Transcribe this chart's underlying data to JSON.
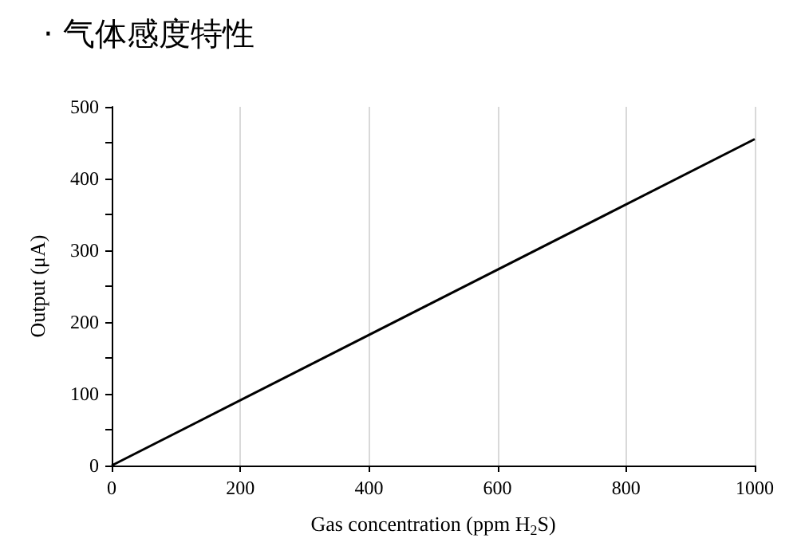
{
  "chart_data": {
    "type": "line",
    "title": "· 气体感度特性",
    "xlabel": "Gas concentration (ppm H$_{2}$S)",
    "ylabel": "Output (μA)",
    "series": [
      {
        "color": "#000000",
        "x": [
          0,
          1000
        ],
        "values": [
          0,
          455
        ]
      }
    ],
    "xlim": [
      0,
      1000
    ],
    "xticks": [
      0,
      200,
      400,
      600,
      800,
      1000
    ],
    "ylim": [
      0,
      500
    ],
    "yticks": [
      0,
      {
        "value": 50,
        "label": null
      },
      100,
      {
        "value": 150,
        "label": null
      },
      200,
      {
        "value": 250,
        "label": null
      },
      300,
      {
        "value": 350,
        "label": null
      },
      400,
      {
        "value": 450,
        "label": null
      },
      500
    ],
    "grid": "x",
    "marker": "none",
    "line_style": "solid"
  }
}
